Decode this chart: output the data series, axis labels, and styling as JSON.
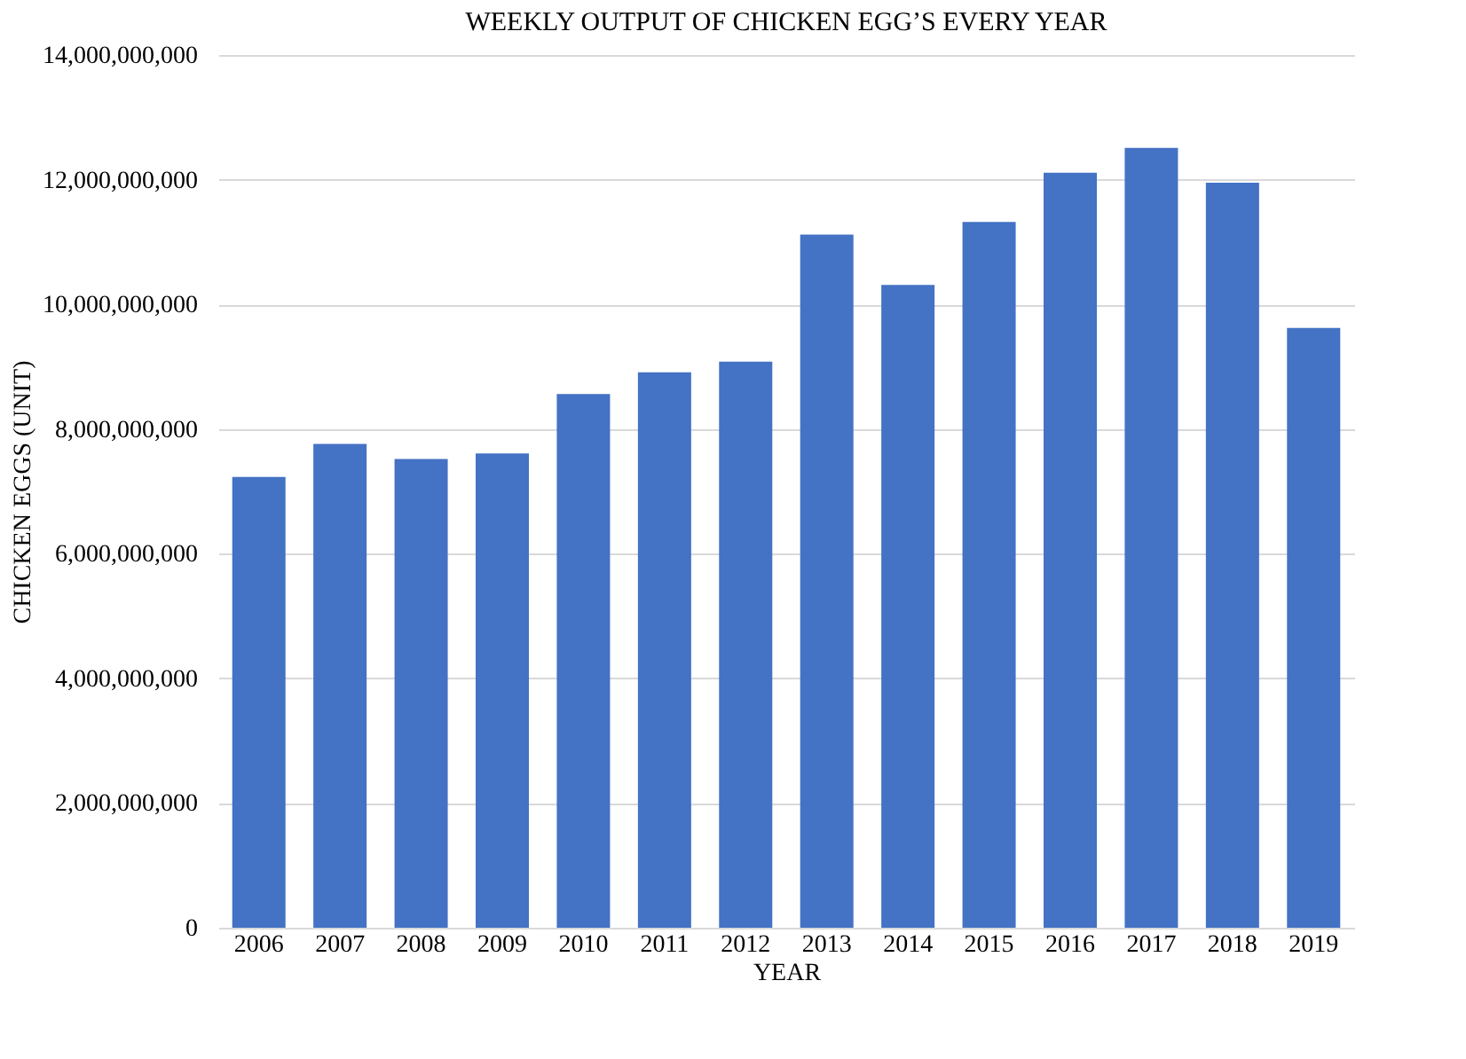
{
  "chart_data": {
    "type": "bar",
    "title": "WEEKLY OUTPUT OF CHICKEN EGG’S EVERY YEAR",
    "xlabel": "YEAR",
    "ylabel": "CHICKEN EGGS (UNIT)",
    "categories": [
      "2006",
      "2007",
      "2008",
      "2009",
      "2010",
      "2011",
      "2012",
      "2013",
      "2014",
      "2015",
      "2016",
      "2017",
      "2018",
      "2019"
    ],
    "values": [
      7230000000,
      7760000000,
      7520000000,
      7610000000,
      8560000000,
      8910000000,
      9080000000,
      11120000000,
      10310000000,
      11320000000,
      12110000000,
      12510000000,
      11950000000,
      9620000000
    ],
    "color": "#4472c4",
    "ylim": [
      0,
      14000000000
    ],
    "yticks": [
      {
        "value": 0,
        "label": "0"
      },
      {
        "value": 2000000000,
        "label": "2,000,000,000"
      },
      {
        "value": 4000000000,
        "label": "4,000,000,000"
      },
      {
        "value": 6000000000,
        "label": "6,000,000,000"
      },
      {
        "value": 8000000000,
        "label": "8,000,000,000"
      },
      {
        "value": 10000000000,
        "label": "10,000,000,000"
      },
      {
        "value": 12000000000,
        "label": "12,000,000,000"
      },
      {
        "value": 14000000000,
        "label": "14,000,000,000"
      }
    ],
    "grid": "y"
  }
}
